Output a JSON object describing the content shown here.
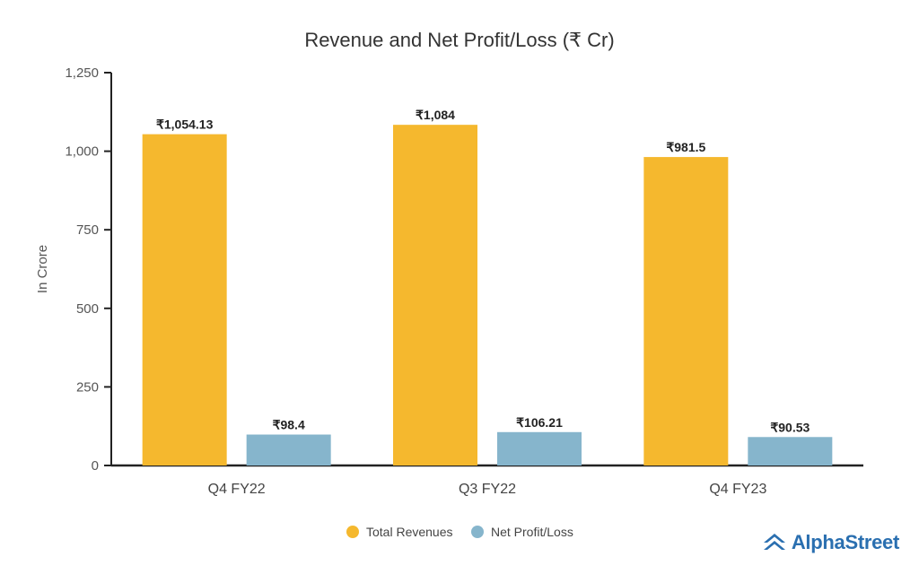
{
  "chart_data": {
    "type": "bar",
    "title": "Revenue and Net Profit/Loss (₹ Cr)",
    "xlabel": "",
    "ylabel": "In Crore",
    "ylim": [
      0,
      1250
    ],
    "yticks": [
      0,
      250,
      500,
      750,
      1000,
      1250
    ],
    "ytick_labels": [
      "0",
      "250",
      "500",
      "750",
      "1,000",
      "1,250"
    ],
    "categories": [
      "Q4 FY22",
      "Q3 FY22",
      "Q4 FY23"
    ],
    "series": [
      {
        "name": "Total Revenues",
        "color": "#f5b82e",
        "values": [
          1054.13,
          1084,
          981.5
        ],
        "labels": [
          "₹1,054.13",
          "₹1,084",
          "₹981.5"
        ]
      },
      {
        "name": "Net Profit/Loss",
        "color": "#86b5cc",
        "values": [
          98.4,
          106.21,
          90.53
        ],
        "labels": [
          "₹98.4",
          "₹106.21",
          "₹90.53"
        ]
      }
    ],
    "grid": false,
    "legend": "bottom-center"
  },
  "brand": {
    "name": "AlphaStreet",
    "color": "#2a6fb0"
  }
}
